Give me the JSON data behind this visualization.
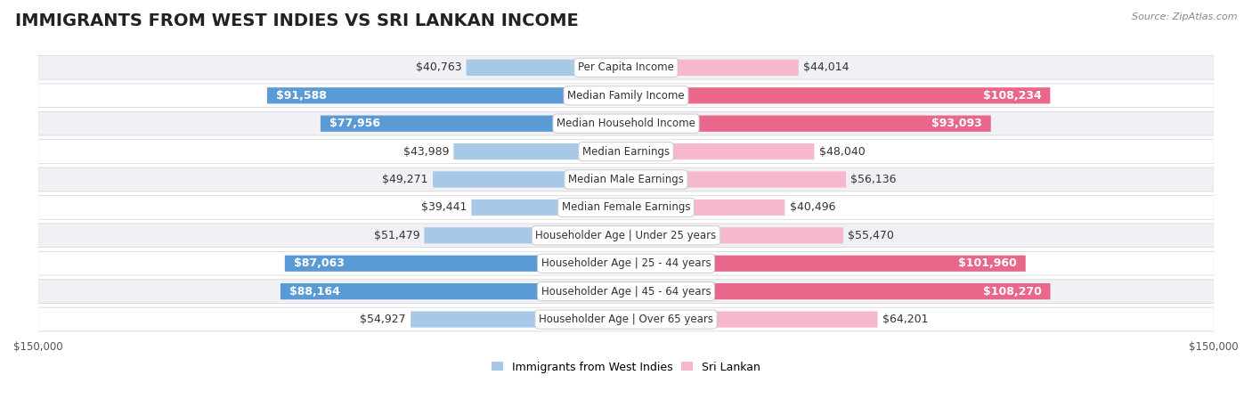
{
  "title": "IMMIGRANTS FROM WEST INDIES VS SRI LANKAN INCOME",
  "source": "Source: ZipAtlas.com",
  "categories": [
    "Per Capita Income",
    "Median Family Income",
    "Median Household Income",
    "Median Earnings",
    "Median Male Earnings",
    "Median Female Earnings",
    "Householder Age | Under 25 years",
    "Householder Age | 25 - 44 years",
    "Householder Age | 45 - 64 years",
    "Householder Age | Over 65 years"
  ],
  "west_indies_values": [
    40763,
    91588,
    77956,
    43989,
    49271,
    39441,
    51479,
    87063,
    88164,
    54927
  ],
  "sri_lankan_values": [
    44014,
    108234,
    93093,
    48040,
    56136,
    40496,
    55470,
    101960,
    108270,
    64201
  ],
  "west_indies_labels": [
    "$40,763",
    "$91,588",
    "$77,956",
    "$43,989",
    "$49,271",
    "$39,441",
    "$51,479",
    "$87,063",
    "$88,164",
    "$54,927"
  ],
  "sri_lankan_labels": [
    "$44,014",
    "$108,234",
    "$93,093",
    "$48,040",
    "$56,136",
    "$40,496",
    "$55,470",
    "$101,960",
    "$108,270",
    "$64,201"
  ],
  "max_value": 150000,
  "color_west_indies_low": "#a8c8e8",
  "color_west_indies_high": "#5b9bd5",
  "color_sri_lankan_low": "#f5b8cc",
  "color_sri_lankan_high": "#e8678a",
  "threshold_wi": 75000,
  "threshold_sl": 85000,
  "row_color_odd": "#f0f0f5",
  "row_color_even": "#ffffff",
  "title_fontsize": 14,
  "label_fontsize": 9,
  "category_fontsize": 8.5,
  "legend_fontsize": 9,
  "axis_label_fontsize": 8.5,
  "figure_bg": "#ffffff"
}
